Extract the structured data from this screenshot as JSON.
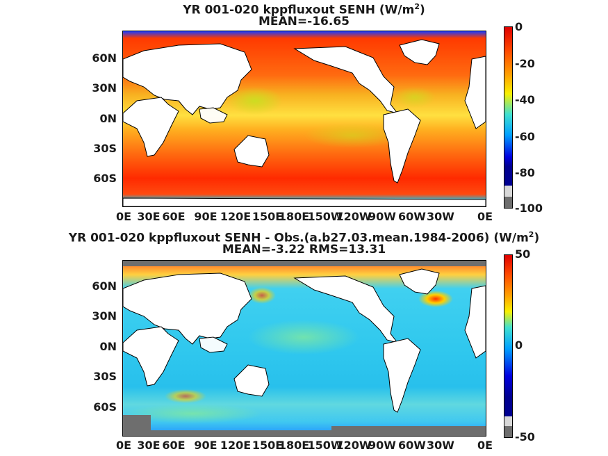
{
  "panel1": {
    "title_main": "YR 001-020 kppfluxout  SENH (W/m",
    "title_sup": "2",
    "title_end": ")",
    "subtitle": "MEAN=-16.65",
    "colorbar_ticks": [
      "0",
      "-20",
      "-40",
      "-60",
      "-80",
      "-100"
    ],
    "colorbar_range": [
      -100,
      0
    ]
  },
  "panel2": {
    "title_main": "YR 001-020 kppfluxout SENH - Obs.(a.b27.03.mean.1984-2006) (W/m",
    "title_sup": "2",
    "title_end": ")",
    "subtitle": "MEAN=-3.22 RMS=13.31",
    "colorbar_ticks": [
      "50",
      "0",
      "-50"
    ],
    "colorbar_range": [
      -50,
      50
    ]
  },
  "lat_labels": [
    "60N",
    "30N",
    "0N",
    "30S",
    "60S"
  ],
  "lon_labels": [
    "0E",
    "30E",
    "60E",
    "90E",
    "120E",
    "150E",
    "180E",
    "150W",
    "120W",
    "90W",
    "60W",
    "30W",
    "0E"
  ],
  "colors": {
    "panel1_ocean": "#f07018",
    "panel2_ocean": "#29c3ea",
    "land": "#ffffff",
    "missing": "#6e6e6e"
  }
}
